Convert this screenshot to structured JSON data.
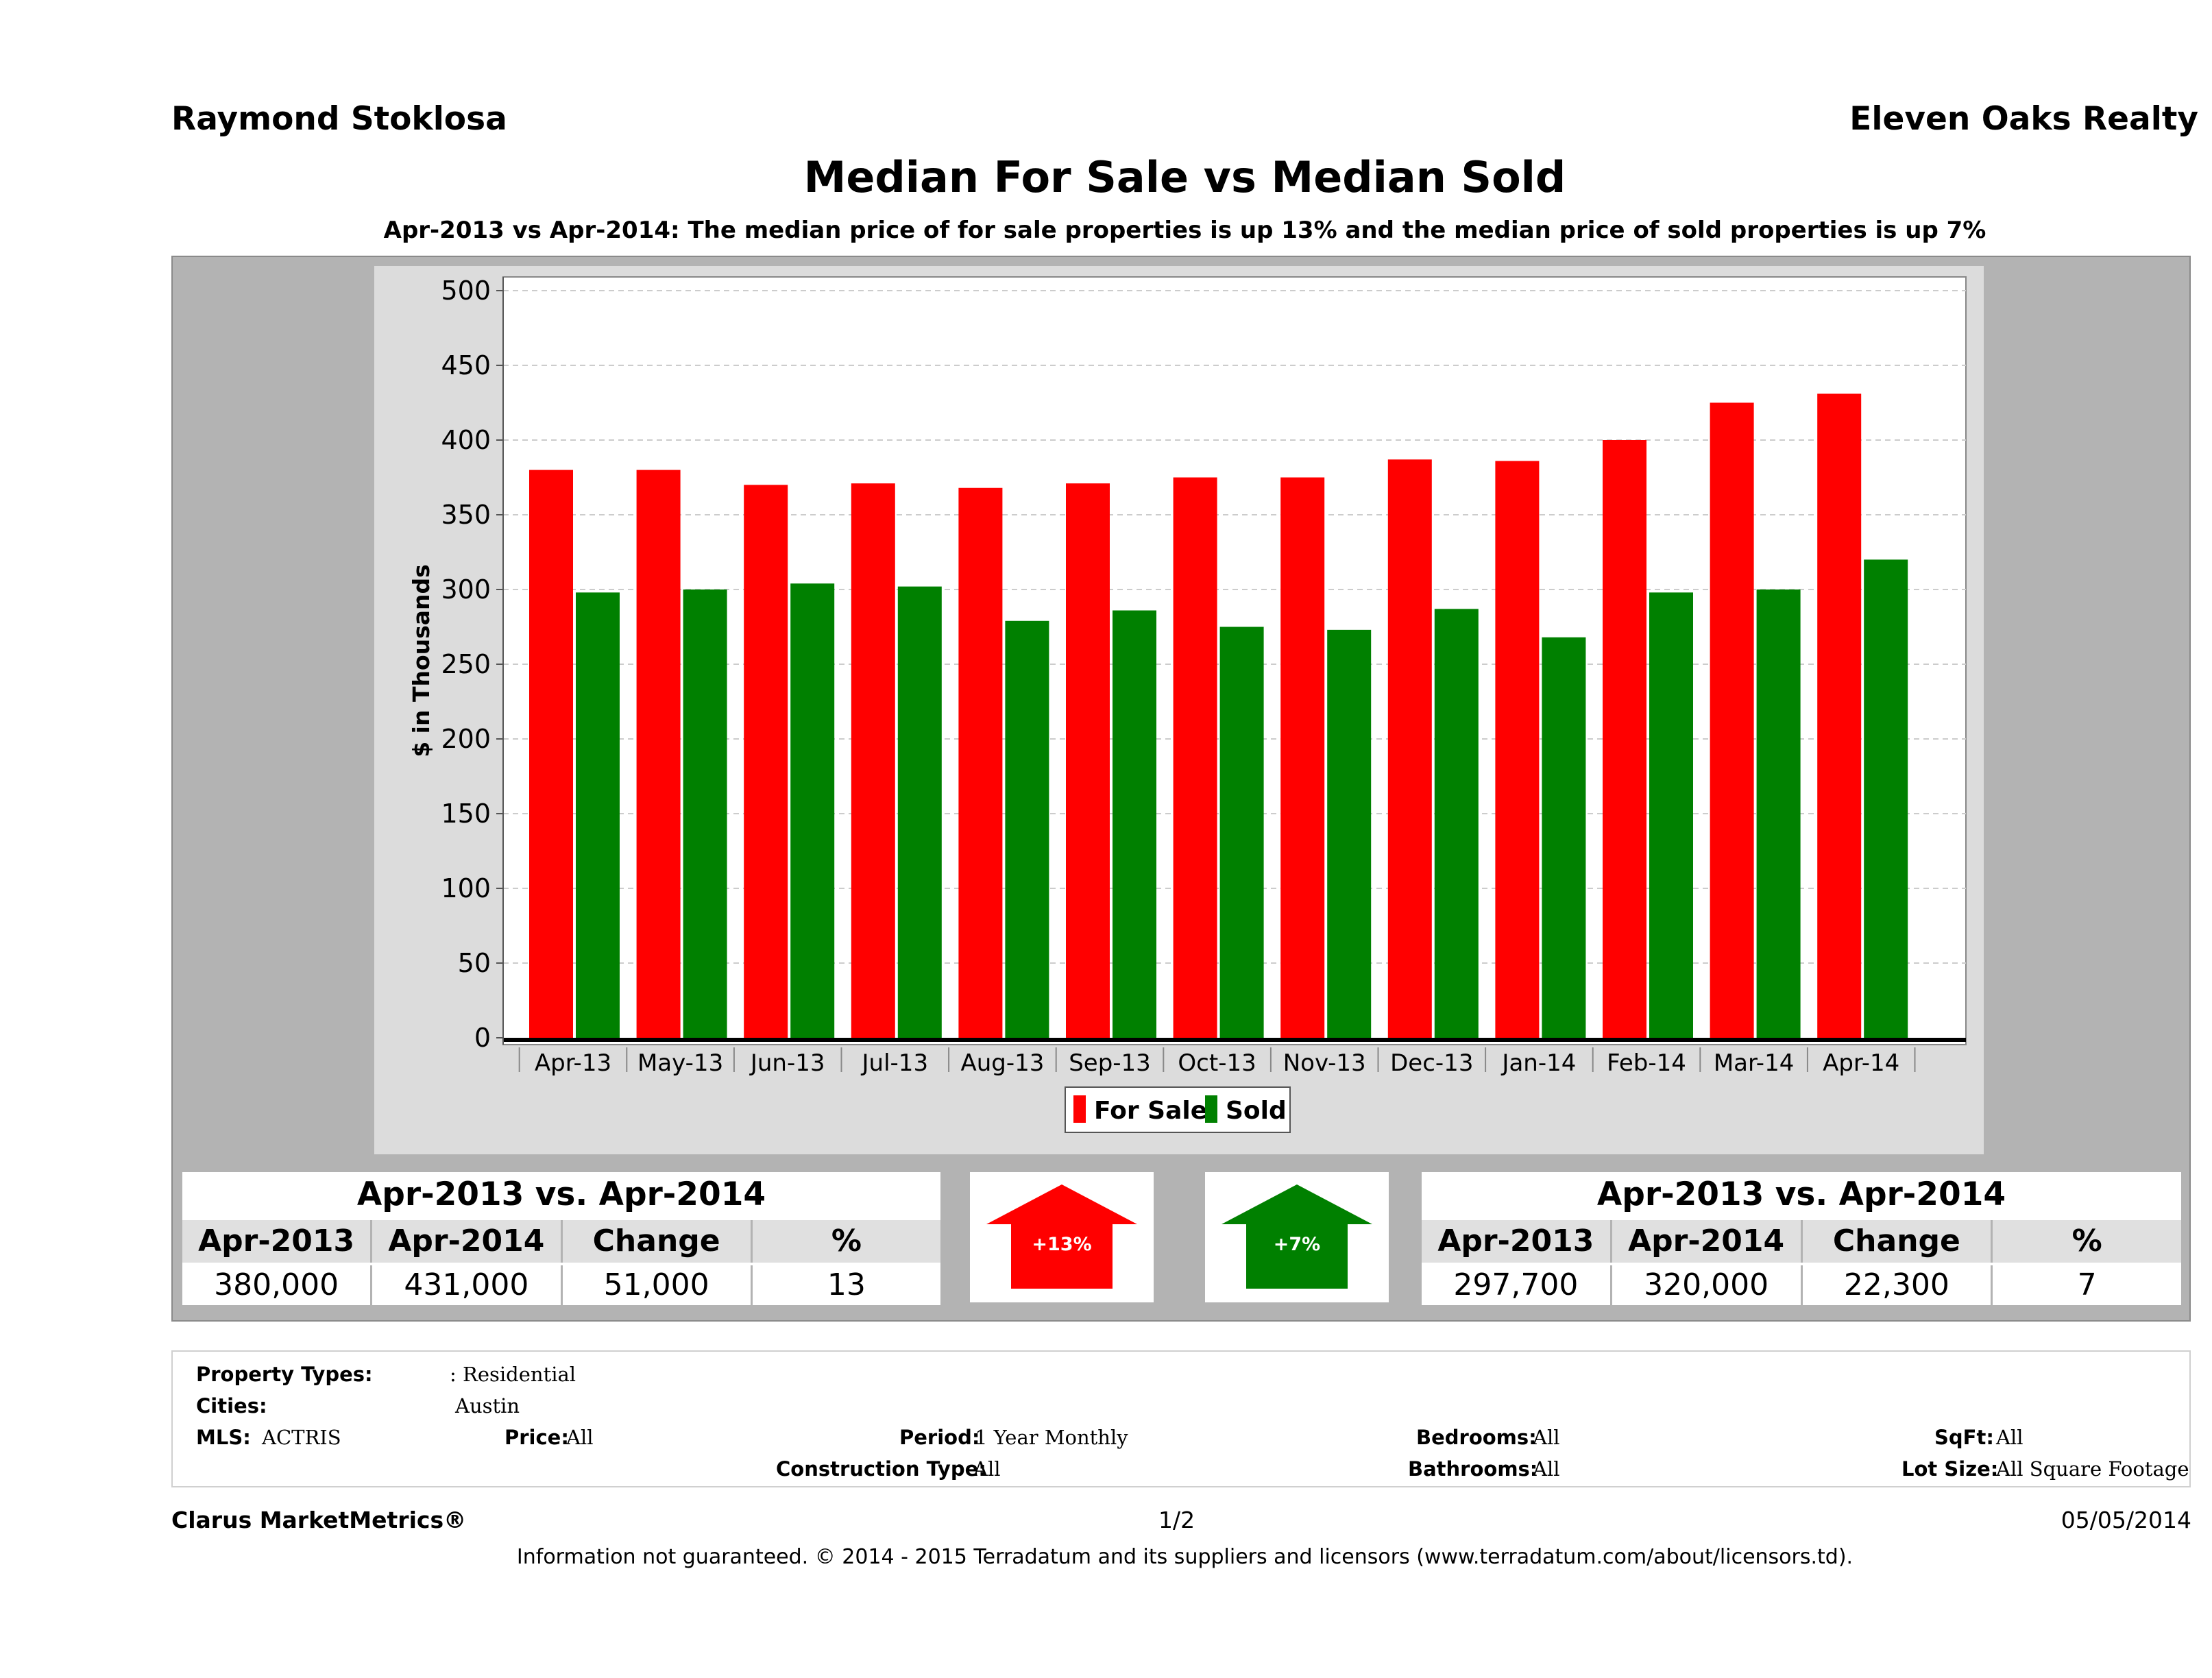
{
  "header": {
    "agent": "Raymond Stoklosa",
    "company": "Eleven Oaks Realty",
    "title": "Median For Sale vs Median Sold",
    "subtitle": "Apr-2013 vs Apr-2014: The median price of for sale properties is up 13% and the median price of sold properties is up 7%"
  },
  "colors": {
    "for_sale": "#ff0000",
    "sold": "#008000",
    "panel": "#b3b3b3",
    "plot": "#ffffff"
  },
  "chart_data": {
    "type": "bar",
    "ylabel": "$ in Thousands",
    "xlabel": "",
    "ylim": [
      0,
      500
    ],
    "yticks": [
      "500",
      "450",
      "400",
      "350",
      "300",
      "250",
      "200",
      "150",
      "100",
      "50",
      "0"
    ],
    "grid": true,
    "legend_position": "bottom-center",
    "categories": [
      "Apr-13",
      "May-13",
      "Jun-13",
      "Jul-13",
      "Aug-13",
      "Sep-13",
      "Oct-13",
      "Nov-13",
      "Dec-13",
      "Jan-14",
      "Feb-14",
      "Mar-14",
      "Apr-14"
    ],
    "series": [
      {
        "name": "For Sale",
        "values": [
          380,
          380,
          370,
          371,
          368,
          371,
          375,
          375,
          387,
          386,
          400,
          425,
          431
        ]
      },
      {
        "name": "Sold",
        "values": [
          298,
          300,
          304,
          302,
          279,
          286,
          275,
          273,
          287,
          268,
          298,
          300,
          320
        ]
      }
    ]
  },
  "stats_for_sale": {
    "title": "Apr-2013 vs. Apr-2014",
    "headers": [
      "Apr-2013",
      "Apr-2014",
      "Change",
      "%"
    ],
    "values": [
      "380,000",
      "431,000",
      "51,000",
      "13"
    ],
    "arrow": "arrow-up",
    "arrow_label": "+13%"
  },
  "stats_sold": {
    "title": "Apr-2013 vs. Apr-2014",
    "headers": [
      "Apr-2013",
      "Apr-2014",
      "Change",
      "%"
    ],
    "values": [
      "297,700",
      "320,000",
      "22,300",
      "7"
    ],
    "arrow": "arrow-up",
    "arrow_label": "+7%"
  },
  "criteria": {
    "property_types_label": "Property Types:",
    "property_types_value": ": Residential",
    "cities_label": "Cities:",
    "cities_value": "Austin",
    "mls_label": "MLS:",
    "mls_value": "ACTRIS",
    "price_label": "Price:",
    "price_value": "All",
    "period_label": "Period:",
    "period_value": "1 Year Monthly",
    "bedrooms_label": "Bedrooms:",
    "bedrooms_value": "All",
    "sqft_label": "SqFt:",
    "sqft_value": "All",
    "construction_label": "Construction Type:",
    "construction_value": "All",
    "bathrooms_label": "Bathrooms:",
    "bathrooms_value": "All",
    "lotsize_label": "Lot Size:",
    "lotsize_value": "All Square Footage"
  },
  "footer": {
    "brand": "Clarus MarketMetrics®",
    "page": "1/2",
    "date": "05/05/2014",
    "disclaimer": "Information not guaranteed. © 2014 - 2015 Terradatum and its suppliers and licensors (www.terradatum.com/about/licensors.td)."
  }
}
